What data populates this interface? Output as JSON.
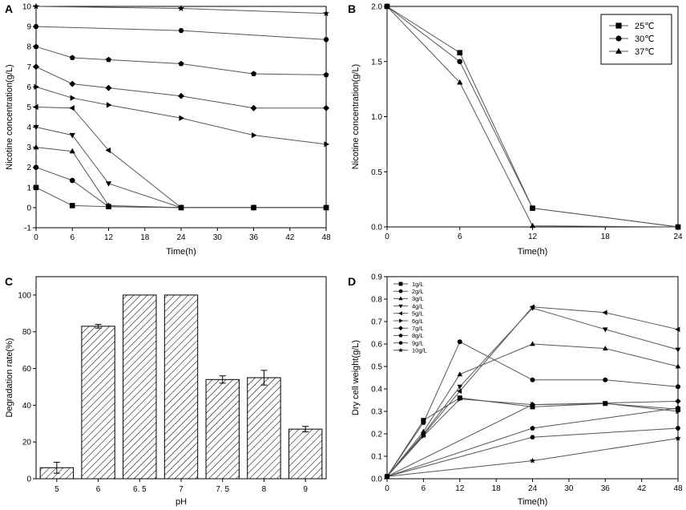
{
  "colors": {
    "axis": "#000000",
    "line": "#555555",
    "marker": "#000000",
    "bar_stroke": "#000000"
  },
  "chart_data": [
    {
      "panel": "A",
      "type": "line",
      "xlabel": "Time(h)",
      "ylabel": "Nicotine concentration(g/L)",
      "xlim": [
        0,
        48
      ],
      "ylim": [
        -1,
        10
      ],
      "xticks": [
        0,
        6,
        12,
        18,
        24,
        30,
        36,
        42,
        48
      ],
      "yticks": [
        -1,
        0,
        1,
        2,
        3,
        4,
        5,
        6,
        7,
        8,
        9,
        10
      ],
      "series": [
        {
          "name": "1g/L",
          "marker": "square",
          "x": [
            0,
            6,
            12,
            24,
            36,
            48
          ],
          "y": [
            1.0,
            0.1,
            0.05,
            0,
            0,
            0
          ]
        },
        {
          "name": "2g/L",
          "marker": "circle",
          "x": [
            0,
            6,
            12,
            24,
            36,
            48
          ],
          "y": [
            2.0,
            1.35,
            0.05,
            0,
            0,
            0
          ]
        },
        {
          "name": "3g/L",
          "marker": "triangle-up",
          "x": [
            0,
            6,
            12,
            24,
            36,
            48
          ],
          "y": [
            3.0,
            2.8,
            0.1,
            0,
            0,
            0
          ]
        },
        {
          "name": "4g/L",
          "marker": "triangle-down",
          "x": [
            0,
            6,
            12,
            24,
            36,
            48
          ],
          "y": [
            4.0,
            3.6,
            1.2,
            0,
            0,
            0
          ]
        },
        {
          "name": "5g/L",
          "marker": "triangle-left",
          "x": [
            0,
            6,
            12,
            24,
            36,
            48
          ],
          "y": [
            5.0,
            4.95,
            2.85,
            0,
            0,
            0
          ]
        },
        {
          "name": "6g/L",
          "marker": "triangle-right",
          "x": [
            0,
            6,
            12,
            24,
            36,
            48
          ],
          "y": [
            6.0,
            5.45,
            5.1,
            4.45,
            3.6,
            3.15
          ]
        },
        {
          "name": "7g/L",
          "marker": "diamond",
          "x": [
            0,
            6,
            12,
            24,
            36,
            48
          ],
          "y": [
            7.0,
            6.15,
            5.95,
            5.55,
            4.95,
            4.95
          ]
        },
        {
          "name": "8g/L",
          "marker": "pentagon",
          "x": [
            0,
            6,
            12,
            24,
            36,
            48
          ],
          "y": [
            8.0,
            7.45,
            7.35,
            7.15,
            6.65,
            6.6
          ]
        },
        {
          "name": "9g/L",
          "marker": "hexagon",
          "x": [
            0,
            24,
            48
          ],
          "y": [
            9.0,
            8.8,
            8.35
          ]
        },
        {
          "name": "10g/L",
          "marker": "star",
          "x": [
            0,
            24,
            48
          ],
          "y": [
            10.0,
            9.9,
            9.65
          ]
        }
      ]
    },
    {
      "panel": "B",
      "type": "line",
      "xlabel": "Time(h)",
      "ylabel": "Nicotine concentration(g/L)",
      "xlim": [
        0,
        24
      ],
      "ylim": [
        0,
        2.0
      ],
      "xticks": [
        0,
        6,
        12,
        18,
        24
      ],
      "yticks": [
        "0.0",
        "0.5",
        "1.0",
        "1.5",
        "2.0"
      ],
      "legend_position": "top-right",
      "series": [
        {
          "name": "25℃",
          "marker": "square",
          "x": [
            0,
            6,
            12,
            24
          ],
          "y": [
            2.0,
            1.58,
            0.17,
            0
          ]
        },
        {
          "name": "30℃",
          "marker": "circle",
          "x": [
            0,
            6,
            12,
            24
          ],
          "y": [
            2.0,
            1.5,
            0.17,
            0
          ]
        },
        {
          "name": "37℃",
          "marker": "triangle-up",
          "x": [
            0,
            6,
            12,
            24
          ],
          "y": [
            2.0,
            1.31,
            0.01,
            0
          ]
        }
      ]
    },
    {
      "panel": "C",
      "type": "bar",
      "xlabel": "pH",
      "ylabel": "Degradation rate(%)",
      "ylim": [
        0,
        110
      ],
      "yticks": [
        0,
        20,
        40,
        60,
        80,
        100
      ],
      "categories": [
        "5",
        "6",
        "6. 5",
        "7",
        "7. 5",
        "8",
        "9"
      ],
      "values": [
        6,
        83,
        100,
        100,
        54,
        55,
        27
      ],
      "errors": [
        3,
        1,
        0,
        0,
        2,
        4,
        1.5
      ]
    },
    {
      "panel": "D",
      "type": "line",
      "xlabel": "Time(h)",
      "ylabel": "Dry cell weight(g/L)",
      "xlim": [
        0,
        48
      ],
      "ylim": [
        0,
        0.9
      ],
      "xticks": [
        0,
        6,
        12,
        18,
        24,
        30,
        36,
        42,
        48
      ],
      "yticks": [
        "0.0",
        "0.1",
        "0.2",
        "0.3",
        "0.4",
        "0.5",
        "0.6",
        "0.7",
        "0.8",
        "0.9"
      ],
      "legend_position": "top-left",
      "series": [
        {
          "name": "1g/L",
          "marker": "square",
          "x": [
            0,
            6,
            12,
            24,
            36,
            48
          ],
          "y": [
            0.01,
            0.26,
            0.36,
            0.32,
            0.335,
            0.31
          ]
        },
        {
          "name": "2g/L",
          "marker": "circle",
          "x": [
            0,
            6,
            12,
            24,
            36,
            48
          ],
          "y": [
            0.01,
            0.25,
            0.61,
            0.44,
            0.44,
            0.41
          ]
        },
        {
          "name": "3g/L",
          "marker": "triangle-up",
          "x": [
            0,
            6,
            12,
            24,
            36,
            48
          ],
          "y": [
            0.01,
            0.21,
            0.465,
            0.6,
            0.58,
            0.5
          ]
        },
        {
          "name": "4g/L",
          "marker": "triangle-down",
          "x": [
            0,
            6,
            12,
            24,
            36,
            48
          ],
          "y": [
            0.01,
            0.2,
            0.41,
            0.76,
            0.665,
            0.575
          ]
        },
        {
          "name": "5g/L",
          "marker": "triangle-left",
          "x": [
            0,
            6,
            12,
            24,
            36,
            48
          ],
          "y": [
            0.01,
            0.195,
            0.39,
            0.765,
            0.74,
            0.665
          ]
        },
        {
          "name": "6g/L",
          "marker": "triangle-right",
          "x": [
            0,
            6,
            12,
            24,
            36,
            48
          ],
          "y": [
            0.01,
            0.19,
            0.355,
            0.33,
            0.335,
            0.3
          ]
        },
        {
          "name": "7g/L",
          "marker": "diamond",
          "x": [
            0,
            24,
            48
          ],
          "y": [
            0.01,
            0.33,
            0.345
          ]
        },
        {
          "name": "8g/L",
          "marker": "pentagon",
          "x": [
            0,
            24,
            48
          ],
          "y": [
            0.01,
            0.225,
            0.315
          ]
        },
        {
          "name": "9g/L",
          "marker": "hexagon",
          "x": [
            0,
            24,
            48
          ],
          "y": [
            0.01,
            0.185,
            0.225
          ]
        },
        {
          "name": "10g/L",
          "marker": "star",
          "x": [
            0,
            24,
            48
          ],
          "y": [
            0.01,
            0.08,
            0.18
          ]
        }
      ]
    }
  ]
}
